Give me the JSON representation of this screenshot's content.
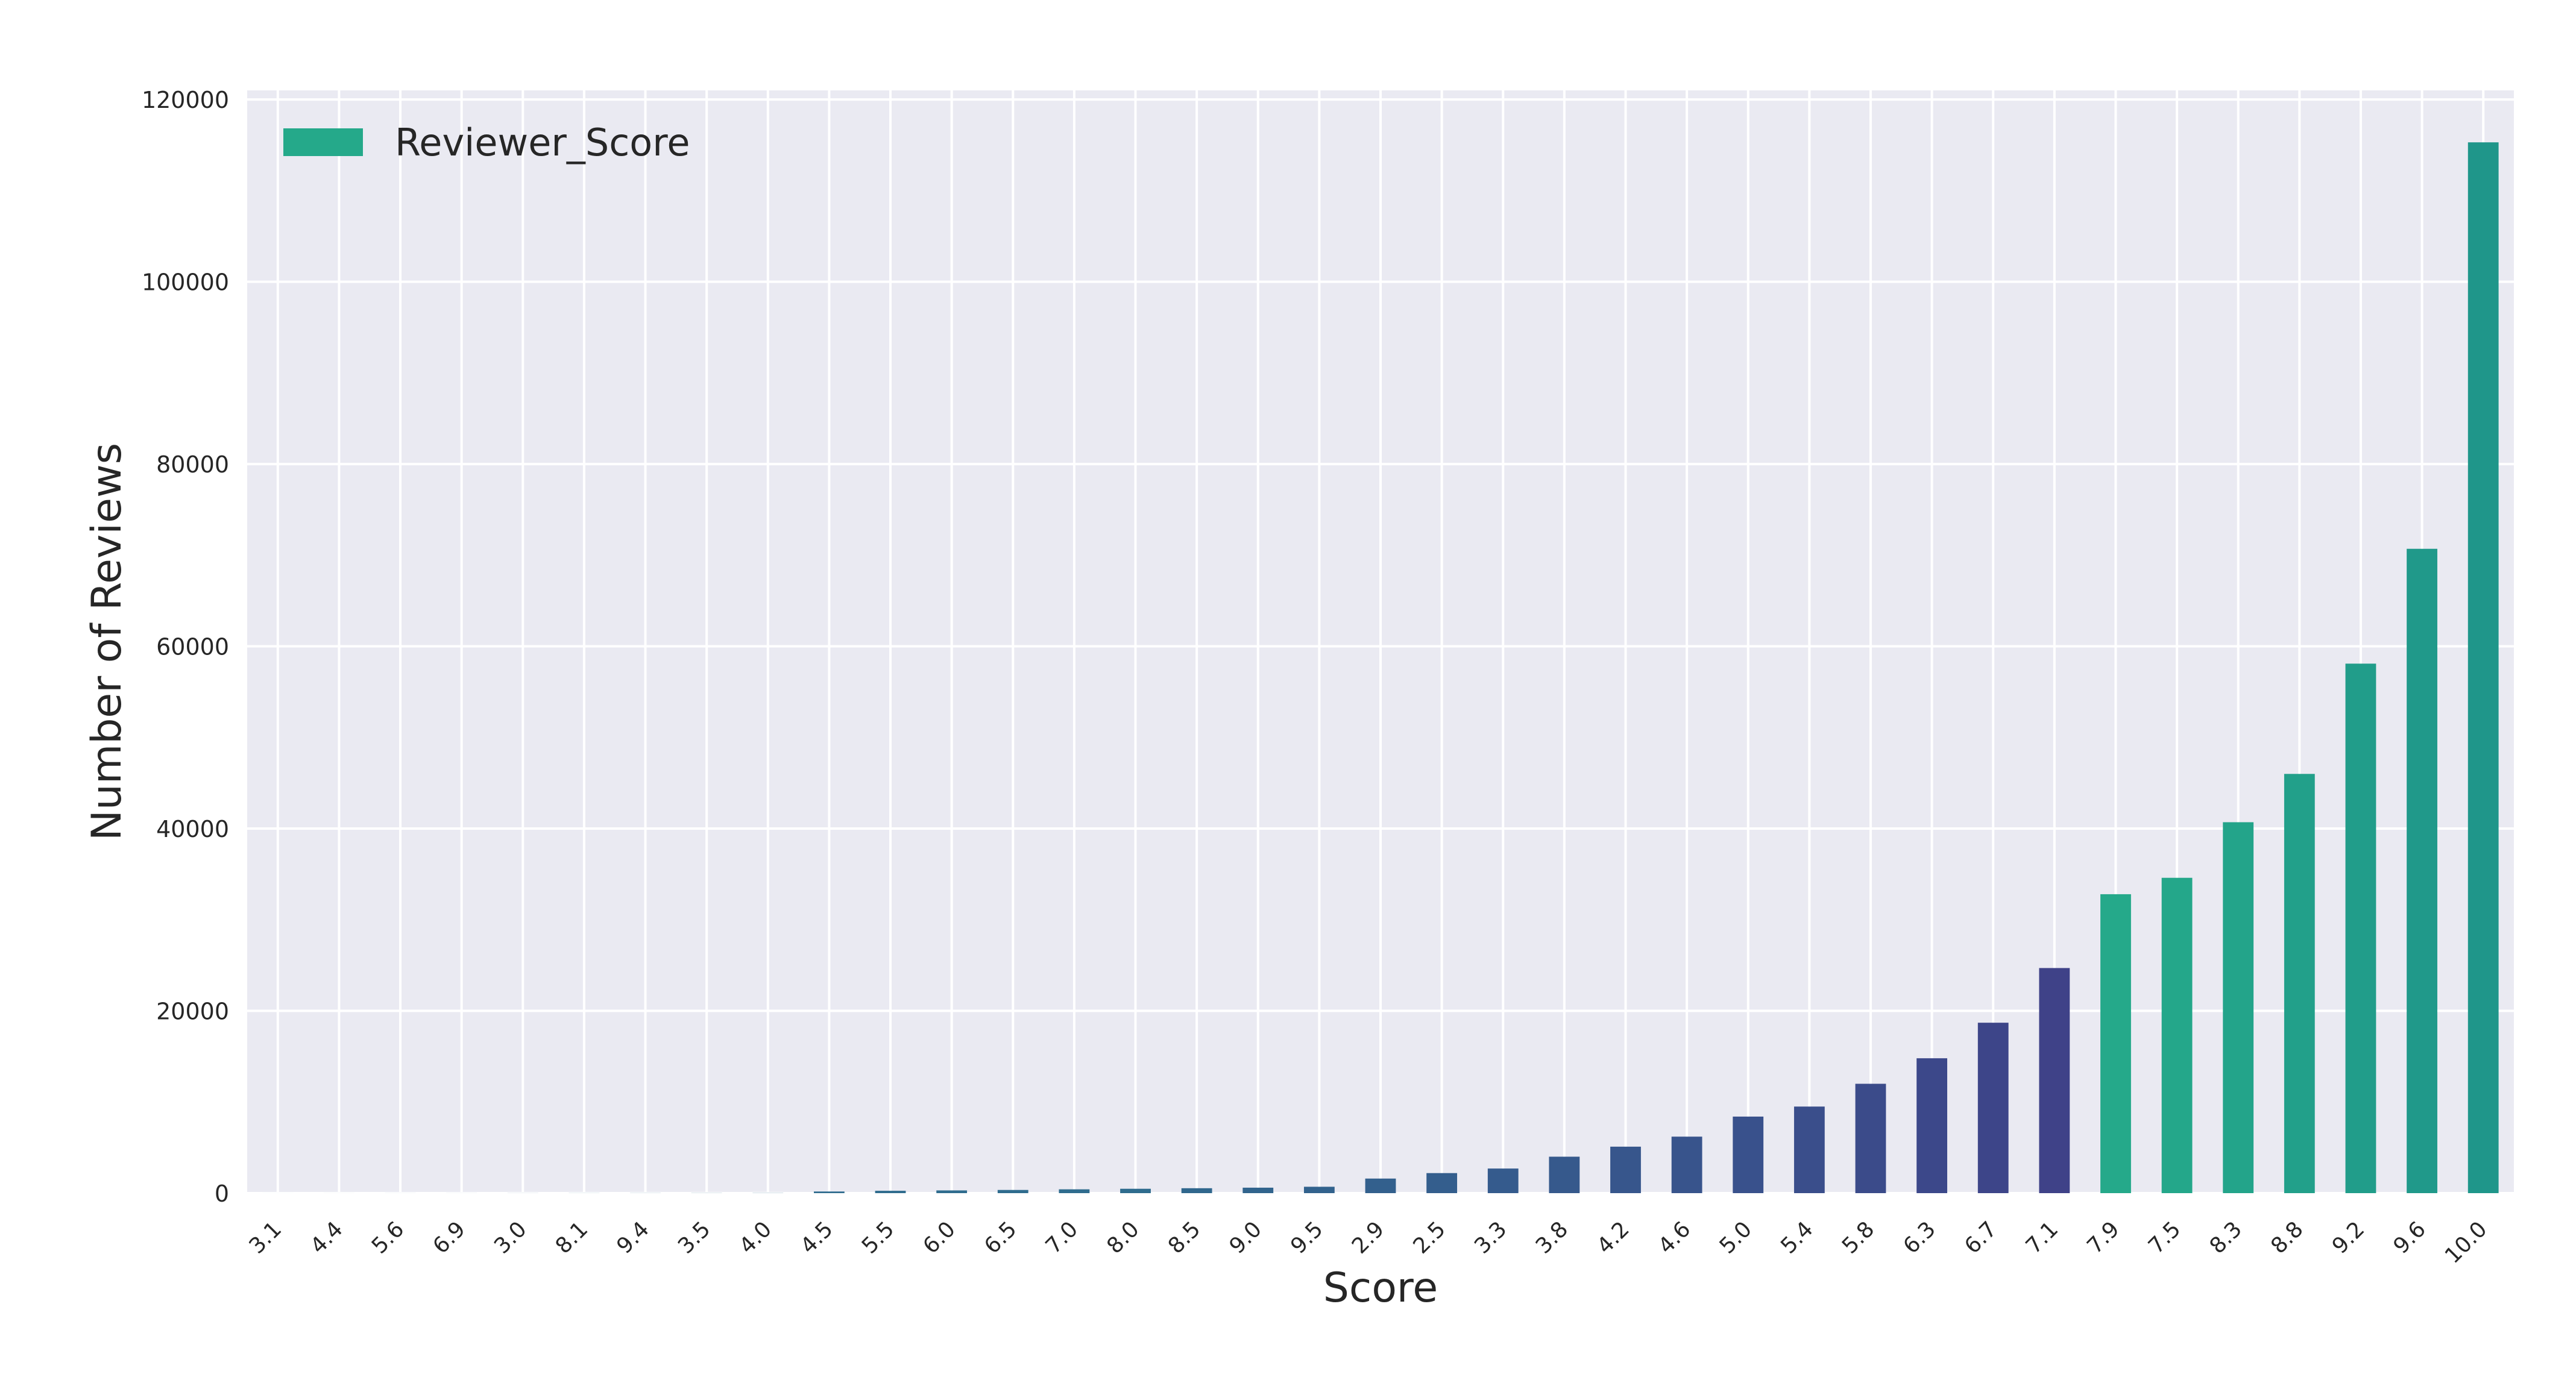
{
  "chart_data": {
    "type": "bar",
    "xlabel": "Score",
    "ylabel": "Number of Reviews",
    "legend": {
      "entries": [
        {
          "name": "Reviewer_Score",
          "color": "#25a98a"
        }
      ],
      "placement": "top-left"
    },
    "grid": true,
    "ylim": [
      0,
      121000
    ],
    "yticks": [
      0,
      20000,
      40000,
      60000,
      80000,
      100000,
      120000
    ],
    "categories": [
      "3.1",
      "4.4",
      "5.6",
      "6.9",
      "3.0",
      "8.1",
      "9.4",
      "3.5",
      "4.0",
      "4.5",
      "5.5",
      "6.0",
      "6.5",
      "7.0",
      "8.0",
      "8.5",
      "9.0",
      "9.5",
      "2.9",
      "2.5",
      "3.3",
      "3.8",
      "4.2",
      "4.6",
      "5.0",
      "5.4",
      "5.8",
      "6.3",
      "6.7",
      "7.1",
      "7.9",
      "7.5",
      "8.3",
      "8.8",
      "9.2",
      "9.6",
      "10.0"
    ],
    "series": [
      {
        "name": "Reviewer_Score",
        "values": [
          1,
          2,
          3,
          3,
          6,
          8,
          10,
          12,
          15,
          180,
          260,
          300,
          350,
          420,
          480,
          540,
          600,
          700,
          1600,
          2200,
          2700,
          4000,
          5100,
          6200,
          8400,
          9500,
          12000,
          14800,
          18700,
          24700,
          32800,
          34600,
          40700,
          46000,
          58100,
          70700,
          115300
        ],
        "colors": [
          "#2f6c8e",
          "#2f6c8e",
          "#2f6c8e",
          "#2f6c8e",
          "#2f6c8e",
          "#2f6c8e",
          "#2f6c8e",
          "#2f6c8e",
          "#2f6c8e",
          "#2f6c8e",
          "#2f6c8e",
          "#2f6c8e",
          "#2f6c8e",
          "#2f6c8e",
          "#2f6c8e",
          "#30678d",
          "#31648d",
          "#32628d",
          "#33608d",
          "#345e8d",
          "#355b8d",
          "#36598c",
          "#37568c",
          "#38548c",
          "#39518c",
          "#3a4e8b",
          "#3b4b8a",
          "#3c488a",
          "#3d4589",
          "#3f4288",
          "#25a98a",
          "#24a78a",
          "#23a48a",
          "#22a08a",
          "#219d8a",
          "#20998a",
          "#1f968a"
        ]
      }
    ]
  }
}
